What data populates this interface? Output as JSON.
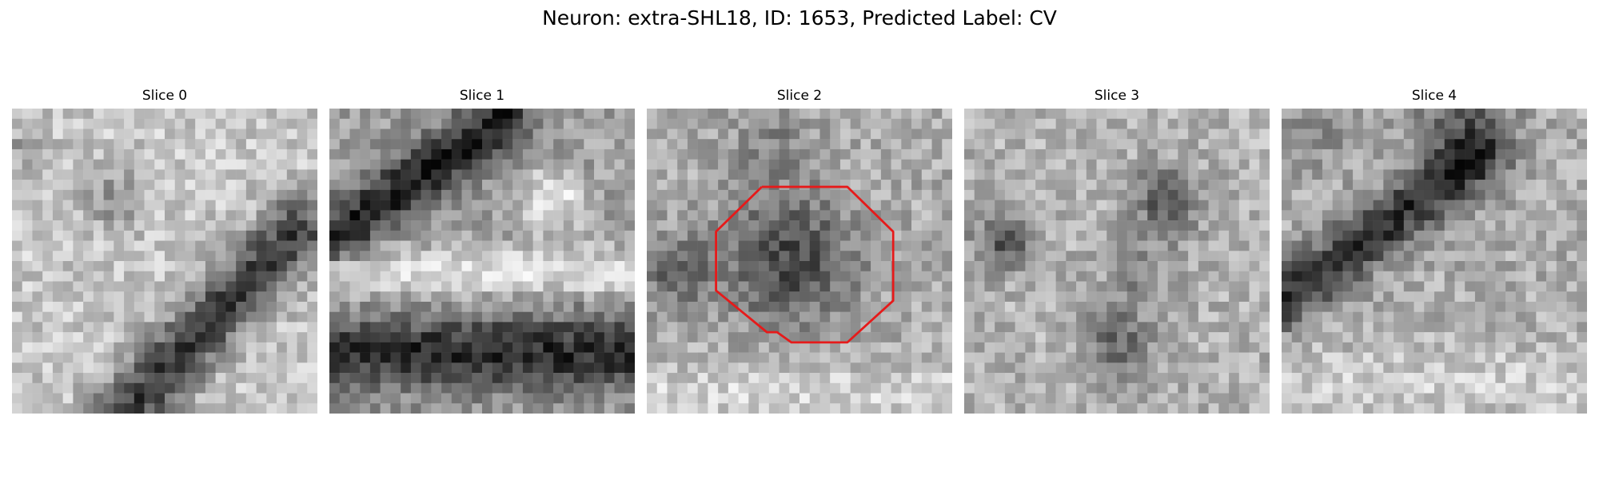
{
  "figure": {
    "title": "Neuron: extra-SHL18, ID: 1653, Predicted Label: CV"
  },
  "panels": [
    {
      "title": "Slice 0",
      "pattern": "diagonal-band-lower-right",
      "contour": false
    },
    {
      "title": "Slice 1",
      "pattern": "diagonal-band-upper-left-and-lower-bar",
      "contour": false
    },
    {
      "title": "Slice 2",
      "pattern": "central-dark-blob",
      "contour": true
    },
    {
      "title": "Slice 3",
      "pattern": "scattered-dark-blobs",
      "contour": false
    },
    {
      "title": "Slice 4",
      "pattern": "diagonal-band-upper",
      "contour": false
    }
  ],
  "colors": {
    "contour": "#e61a1a"
  }
}
